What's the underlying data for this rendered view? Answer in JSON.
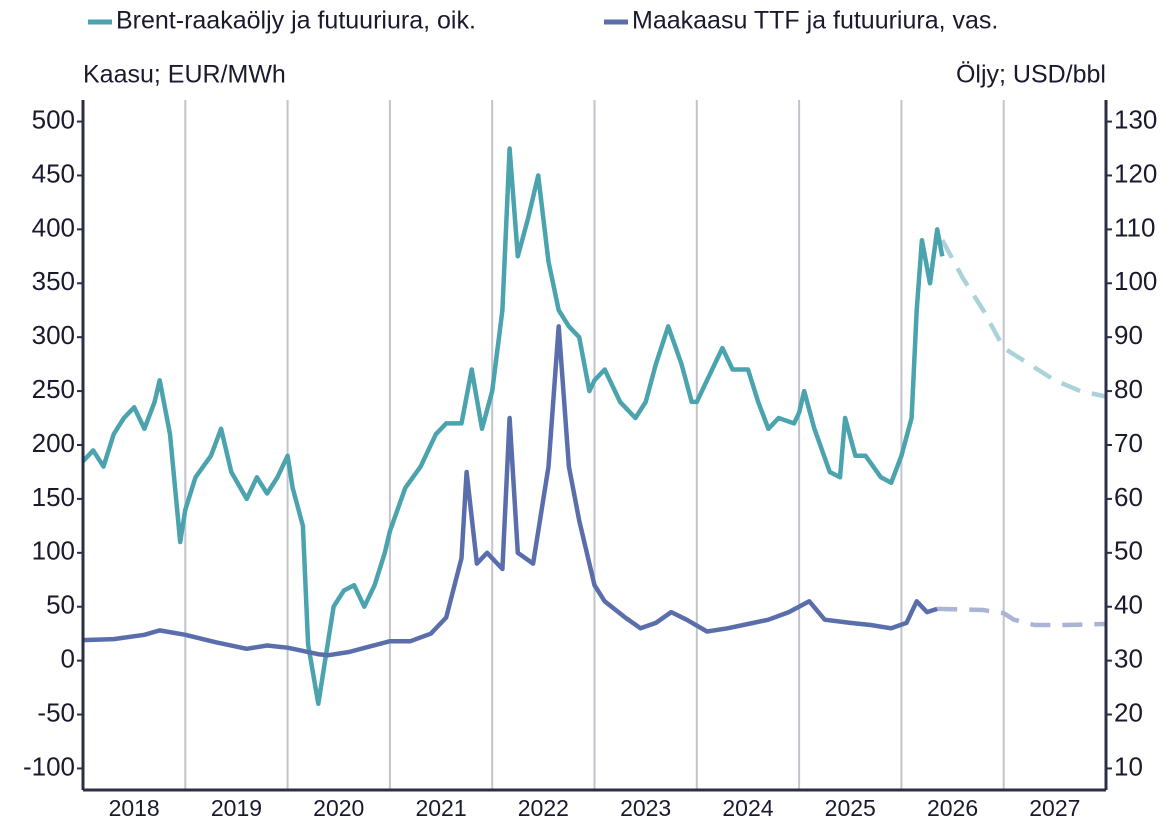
{
  "chart_data": {
    "type": "line",
    "unit_left": "Kaasu; EUR/MWh",
    "unit_right": "Öljy; USD/bbl",
    "xlim": [
      2018,
      2028
    ],
    "xticks": [
      {
        "value": 2018,
        "label": "2018"
      },
      {
        "value": 2019,
        "label": "2019"
      },
      {
        "value": 2020,
        "label": "2020"
      },
      {
        "value": 2021,
        "label": "2021"
      },
      {
        "value": 2022,
        "label": "2022"
      },
      {
        "value": 2023,
        "label": "2023"
      },
      {
        "value": 2024,
        "label": "2024"
      },
      {
        "value": 2025,
        "label": "2025"
      },
      {
        "value": 2026,
        "label": "2026"
      },
      {
        "value": 2027,
        "label": "2027"
      }
    ],
    "ylim": [
      -120,
      520
    ],
    "yticks": [
      -100,
      -50,
      0,
      50,
      100,
      150,
      200,
      250,
      300,
      350,
      400,
      450,
      500
    ],
    "y2lim": [
      6,
      134
    ],
    "y2ticks": [
      10,
      20,
      30,
      40,
      50,
      60,
      70,
      80,
      90,
      100,
      110,
      120,
      130
    ],
    "grid": "x",
    "series": [
      {
        "name": "Brent-raakaöljy ja futuuriura, oik.",
        "color": "#4ba3ad",
        "axis": "y2",
        "x": [
          2018.0,
          2018.1,
          2018.2,
          2018.3,
          2018.4,
          2018.5,
          2018.6,
          2018.7,
          2018.75,
          2018.85,
          2018.95,
          2019.0,
          2019.1,
          2019.25,
          2019.35,
          2019.45,
          2019.6,
          2019.7,
          2019.8,
          2019.9,
          2020.0,
          2020.05,
          2020.15,
          2020.2,
          2020.3,
          2020.35,
          2020.45,
          2020.55,
          2020.65,
          2020.75,
          2020.85,
          2020.95,
          2021.0,
          2021.15,
          2021.3,
          2021.45,
          2021.55,
          2021.7,
          2021.8,
          2021.9,
          2022.0,
          2022.1,
          2022.17,
          2022.25,
          2022.35,
          2022.45,
          2022.55,
          2022.65,
          2022.75,
          2022.85,
          2022.95,
          2023.0,
          2023.1,
          2023.25,
          2023.4,
          2023.5,
          2023.6,
          2023.72,
          2023.85,
          2023.95,
          2024.0,
          2024.1,
          2024.25,
          2024.35,
          2024.5,
          2024.6,
          2024.7,
          2024.8,
          2024.95,
          2025.0,
          2025.05,
          2025.15,
          2025.3,
          2025.4,
          2025.45,
          2025.55,
          2025.65,
          2025.8,
          2025.9,
          2026.0,
          2026.1,
          2026.15,
          2026.2,
          2026.28,
          2026.35,
          2026.4
        ],
        "values": [
          67,
          69,
          66,
          72,
          75,
          77,
          73,
          78,
          82,
          72,
          52,
          58,
          64,
          68,
          73,
          65,
          60,
          64,
          61,
          64,
          68,
          62,
          55,
          33,
          22,
          28,
          40,
          43,
          44,
          40,
          44,
          50,
          54,
          62,
          66,
          72,
          74,
          74,
          84,
          73,
          80,
          95,
          125,
          105,
          112,
          120,
          104,
          95,
          92,
          90,
          80,
          82,
          84,
          78,
          75,
          78,
          85,
          92,
          85,
          78,
          78,
          82,
          88,
          84,
          84,
          78,
          73,
          75,
          74,
          76,
          80,
          73,
          65,
          64,
          75,
          68,
          68,
          64,
          63,
          68,
          75,
          95,
          108,
          100,
          110,
          105
        ],
        "forecast_color": "#a9d3d8",
        "forecast_x": [
          2026.4,
          2026.6,
          2026.8,
          2027.0,
          2027.25,
          2027.5,
          2027.75,
          2028.0
        ],
        "forecast_values": [
          108,
          101,
          95,
          88,
          85,
          82,
          80,
          79
        ]
      },
      {
        "name": "Maakaasu TTF ja futuuriura, vas.",
        "color": "#5a6eab",
        "axis": "y",
        "x": [
          2018.0,
          2018.3,
          2018.6,
          2018.75,
          2019.0,
          2019.3,
          2019.6,
          2019.8,
          2020.0,
          2020.3,
          2020.4,
          2020.6,
          2020.8,
          2021.0,
          2021.2,
          2021.4,
          2021.55,
          2021.7,
          2021.75,
          2021.85,
          2021.95,
          2022.1,
          2022.17,
          2022.25,
          2022.4,
          2022.55,
          2022.65,
          2022.75,
          2022.85,
          2022.95,
          2023.0,
          2023.1,
          2023.3,
          2023.45,
          2023.6,
          2023.75,
          2023.9,
          2024.1,
          2024.3,
          2024.5,
          2024.7,
          2024.9,
          2025.1,
          2025.25,
          2025.5,
          2025.7,
          2025.9,
          2026.05,
          2026.15,
          2026.25,
          2026.35
        ],
        "values": [
          19,
          20,
          24,
          28,
          24,
          17,
          11,
          14,
          12,
          6,
          5,
          8,
          13,
          18,
          18,
          25,
          40,
          95,
          175,
          90,
          100,
          85,
          225,
          100,
          90,
          180,
          310,
          180,
          130,
          90,
          70,
          55,
          40,
          30,
          35,
          45,
          38,
          27,
          30,
          34,
          38,
          45,
          55,
          38,
          35,
          33,
          30,
          35,
          55,
          45,
          48
        ],
        "forecast_color": "#aab4d4",
        "forecast_x": [
          2026.35,
          2026.8,
          2027.0,
          2027.1,
          2027.3,
          2027.6,
          2028.0
        ],
        "forecast_values": [
          48,
          47,
          44,
          38,
          33,
          33,
          34
        ]
      }
    ]
  }
}
